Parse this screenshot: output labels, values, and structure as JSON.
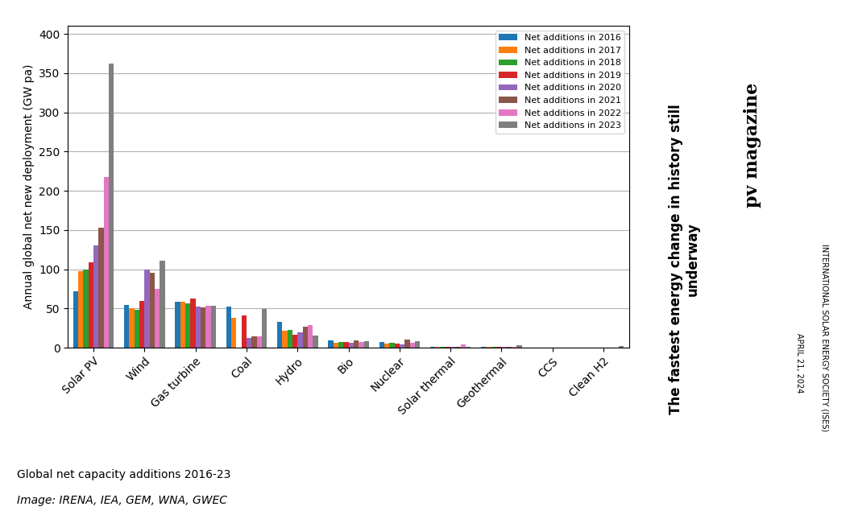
{
  "chart_data": {
    "type": "bar",
    "categories": [
      "Solar PV",
      "Wind",
      "Gas turbine",
      "Coal",
      "Hydro",
      "Bio",
      "Nuclear",
      "Solar thermal",
      "Geothermal",
      "CCS",
      "Clean H2"
    ],
    "series": [
      {
        "name": "Net additions in 2016",
        "values": [
          72,
          54,
          59,
          52,
          33,
          9,
          7,
          1,
          1,
          0,
          0
        ]
      },
      {
        "name": "Net additions in 2017",
        "values": [
          98,
          50,
          59,
          38,
          22,
          6,
          5,
          1,
          1,
          0,
          0
        ]
      },
      {
        "name": "Net additions in 2018",
        "values": [
          100,
          48,
          57,
          0,
          23,
          7,
          6,
          1,
          1,
          0,
          0
        ]
      },
      {
        "name": "Net additions in 2019",
        "values": [
          109,
          60,
          63,
          41,
          17,
          7,
          5,
          1,
          1,
          0,
          0
        ]
      },
      {
        "name": "Net additions in 2020",
        "values": [
          130,
          100,
          52,
          12,
          20,
          6,
          4,
          1,
          1,
          0,
          0
        ]
      },
      {
        "name": "Net additions in 2021",
        "values": [
          153,
          96,
          51,
          14,
          27,
          9,
          10,
          1,
          1,
          0,
          0
        ]
      },
      {
        "name": "Net additions in 2022",
        "values": [
          217,
          75,
          53,
          15,
          29,
          7,
          6,
          4,
          1,
          0,
          0
        ]
      },
      {
        "name": "Net additions in 2023",
        "values": [
          362,
          111,
          53,
          49,
          16,
          8,
          8,
          1,
          3,
          0,
          2
        ]
      }
    ],
    "y_label": "Annual global net new deployment (GW pa)",
    "ylim": [
      0,
      410
    ],
    "yticks": [
      0,
      50,
      100,
      150,
      200,
      250,
      300,
      350,
      400
    ],
    "grid": true,
    "legend": "upper right",
    "annotations": [
      "Global net capacity additions 2016-23",
      "Image: IRENA, IEA, GEM, WNA, GWEC",
      "The fastest energy change in history still\nunderway",
      "pv magazine",
      "APRIL 21, 2024",
      "INTERNATIONAL SOLAR ENERGY SOCIETY (ISES)"
    ]
  }
}
